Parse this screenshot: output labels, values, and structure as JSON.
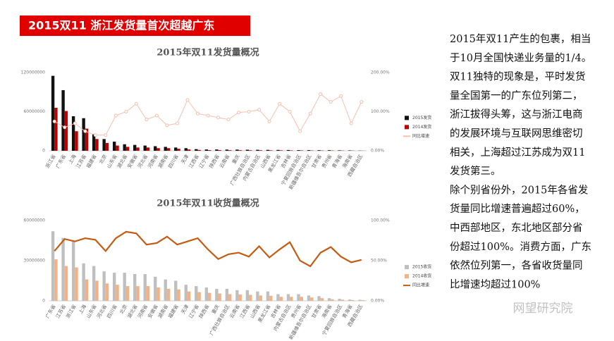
{
  "header": {
    "title": "2015双11 浙江发货量首次超越广东"
  },
  "body": {
    "lines": [
      "2015年双11产生的包裹，相当",
      "于10月全国快递业务量的1/4。",
      "双11独特的现象是，平时发货",
      "量全国第一的广东位列第二，",
      "浙江拔得头筹，这与浙江电商",
      "的发展环境与互联网思维密切",
      "相关，上海超过江苏成为双11",
      "发货第三。",
      "除个别省份外，2015年各省发",
      "货量同比增速普遍超过60%，",
      "中西部地区，东北地区部分省",
      "份超过100%。消费方面，广东",
      "依然位列第一，各省收货量同",
      "比增速均超过100%"
    ]
  },
  "watermark": "网望研究院",
  "chart_data": [
    {
      "type": "bar",
      "title": "2015年双11发货量概况",
      "categories": [
        "浙江省",
        "广东省",
        "上海",
        "江苏省",
        "福建省",
        "北京",
        "山东省",
        "湖北省",
        "安徽省",
        "河北省",
        "河南省",
        "湖南省",
        "四川省",
        "天津",
        "江西省",
        "辽宁省",
        "陕西省",
        "云南省",
        "重庆",
        "广西壮族自治区",
        "内蒙古自治区",
        "山西省",
        "黑龙江省",
        "吉林省",
        "宁夏回族自治区",
        "新疆维吾尔自治区",
        "甘肃省",
        "贵州省",
        "青海省",
        "海南省",
        "西藏自治区"
      ],
      "series": [
        {
          "name": "2015发货",
          "type": "bar",
          "color": "#111111",
          "values": [
            115000000,
            93000000,
            53000000,
            50000000,
            26000000,
            18000000,
            14000000,
            10000000,
            9000000,
            8000000,
            7000000,
            6000000,
            5000000,
            4000000,
            2500000,
            2000000,
            2000000,
            1800000,
            1800000,
            1600000,
            1500000,
            1400000,
            1300000,
            1200000,
            1000000,
            1000000,
            900000,
            900000,
            700000,
            600000,
            300000
          ]
        },
        {
          "name": "2014发货",
          "type": "bar",
          "color": "#c00000",
          "values": [
            66000000,
            61000000,
            30000000,
            34000000,
            18000000,
            12000000,
            8000000,
            6000000,
            5000000,
            5000000,
            4000000,
            4000000,
            3000000,
            2000000,
            1300000,
            1000000,
            1000000,
            900000,
            900000,
            800000,
            800000,
            700000,
            700000,
            600000,
            600000,
            500000,
            450000,
            450000,
            350000,
            300000,
            150000
          ]
        },
        {
          "name": "同比增速",
          "type": "line",
          "axis": "y2",
          "color": "#f4c0b0",
          "markers": true,
          "values": [
            75,
            60,
            70,
            50,
            40,
            40,
            90,
            100,
            120,
            80,
            90,
            65,
            70,
            130,
            95,
            90,
            85,
            80,
            98,
            100,
            105,
            75,
            120,
            100,
            50,
            95,
            145,
            125,
            140,
            70,
            125
          ]
        }
      ],
      "ylim": [
        0,
        120000000
      ],
      "yticks": [
        0,
        60000000,
        120000000
      ],
      "y2lim": [
        0,
        200
      ],
      "y2ticks": [
        {
          "value": 0,
          "label": "0.00%"
        },
        {
          "value": 100,
          "label": "100.00%"
        },
        {
          "value": 200,
          "label": "200.00%"
        }
      ],
      "legend": "right"
    },
    {
      "type": "bar",
      "title": "2015年双11收货量概况",
      "categories": [
        "广东省",
        "江苏省",
        "浙江省",
        "上海",
        "山东省",
        "河北省",
        "四川省",
        "北京",
        "湖北省",
        "河南省",
        "安徽省",
        "湖南省",
        "福建省",
        "天津",
        "辽宁省",
        "陕西省",
        "重庆",
        "广西壮族自治区",
        "云南省",
        "江西省",
        "山西省",
        "黑龙江省",
        "吉林省",
        "内蒙古自治区",
        "贵州省",
        "新疆维吾尔自治区",
        "甘肃省",
        "海南省",
        "宁夏回族自治区",
        "青海省",
        "西藏自治区"
      ],
      "series": [
        {
          "name": "2015收货",
          "type": "bar",
          "color": "#bfbfbf",
          "values": [
            52000000,
            47000000,
            45000000,
            28000000,
            26000000,
            22000000,
            21000000,
            21000000,
            20000000,
            20000000,
            18000000,
            16000000,
            15000000,
            12000000,
            11000000,
            10000000,
            9000000,
            9000000,
            8000000,
            8000000,
            7000000,
            7000000,
            5000000,
            5000000,
            5000000,
            4000000,
            3500000,
            2000000,
            1500000,
            1000000,
            800000
          ]
        },
        {
          "name": "2014收货",
          "type": "bar",
          "color": "#f4b183",
          "values": [
            31000000,
            26000000,
            25000000,
            16000000,
            15000000,
            13000000,
            12000000,
            11000000,
            11000000,
            11000000,
            10000000,
            9000000,
            8500000,
            7000000,
            6500000,
            6000000,
            5500000,
            5000000,
            4800000,
            4500000,
            4000000,
            3800000,
            3000000,
            3000000,
            3000000,
            2500000,
            2000000,
            1200000,
            900000,
            600000,
            500000
          ]
        },
        {
          "name": "同比增速",
          "type": "line",
          "axis": "y2",
          "color": "#c55a11",
          "markers": false,
          "values": [
            62,
            77,
            74,
            78,
            76,
            62,
            78,
            86,
            84,
            70,
            72,
            80,
            70,
            74,
            78,
            64,
            52,
            58,
            60,
            55,
            68,
            54,
            64,
            73,
            50,
            43,
            60,
            67,
            55,
            48,
            51
          ]
        }
      ],
      "ylim": [
        0,
        60000000
      ],
      "yticks": [
        0,
        30000000,
        60000000
      ],
      "y2lim": [
        0,
        100
      ],
      "y2ticks": [
        {
          "value": 0,
          "label": "0.00%"
        },
        {
          "value": 50,
          "label": "50.00%"
        },
        {
          "value": 100,
          "label": "100.00%"
        }
      ],
      "legend": "right"
    }
  ]
}
